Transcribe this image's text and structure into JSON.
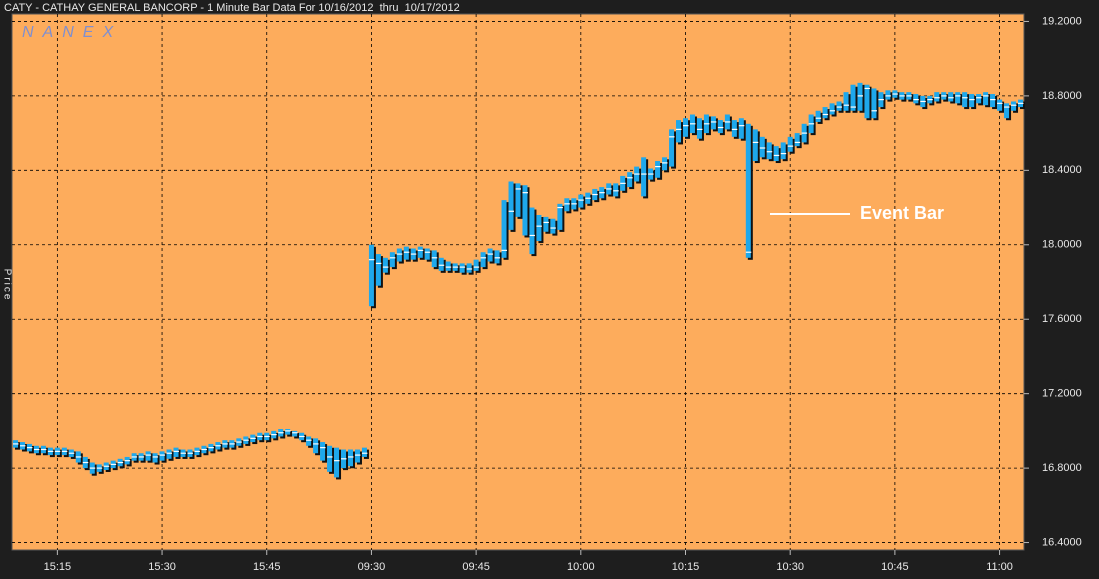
{
  "chart_data": {
    "type": "hlc",
    "title": "CATY - CATHAY GENERAL BANCORP - 1 Minute Bar Data For 10/16/2012  thru  10/17/2012",
    "watermark": "NANEX",
    "y_label": "Price",
    "annotation": "Event Bar",
    "color": "#1ea8ec",
    "background": "#fdac5c",
    "grid": true,
    "ylim": [
      16.36,
      19.24
    ],
    "yticks": [
      {
        "value": 16.4,
        "label": "16.4000"
      },
      {
        "value": 16.8,
        "label": "16.8000"
      },
      {
        "value": 17.2,
        "label": "17.2000"
      },
      {
        "value": 17.6,
        "label": "17.6000"
      },
      {
        "value": 18.0,
        "label": "18.0000"
      },
      {
        "value": 18.4,
        "label": "18.4000"
      },
      {
        "value": 18.8,
        "label": "18.8000"
      },
      {
        "value": 19.2,
        "label": "19.2000"
      }
    ],
    "categories": [
      null,
      null,
      null,
      null,
      null,
      null,
      "15:15",
      null,
      null,
      null,
      null,
      null,
      null,
      null,
      null,
      null,
      null,
      null,
      null,
      null,
      null,
      "15:30",
      null,
      null,
      null,
      null,
      null,
      null,
      null,
      null,
      null,
      null,
      null,
      null,
      null,
      null,
      "15:45",
      null,
      null,
      null,
      null,
      null,
      null,
      null,
      null,
      null,
      null,
      null,
      null,
      null,
      null,
      "09:30",
      null,
      null,
      null,
      null,
      null,
      null,
      null,
      null,
      null,
      null,
      null,
      null,
      null,
      null,
      "09:45",
      null,
      null,
      null,
      null,
      null,
      null,
      null,
      null,
      null,
      null,
      null,
      null,
      null,
      null,
      "10:00",
      null,
      null,
      null,
      null,
      null,
      null,
      null,
      null,
      null,
      null,
      null,
      null,
      null,
      null,
      "10:15",
      null,
      null,
      null,
      null,
      null,
      null,
      null,
      null,
      null,
      null,
      null,
      null,
      null,
      null,
      "10:30",
      null,
      null,
      null,
      null,
      null,
      null,
      null,
      null,
      null,
      null,
      null,
      null,
      null,
      null,
      "10:45",
      null,
      null,
      null,
      null,
      null,
      null,
      null,
      null,
      null,
      null,
      null,
      null,
      null,
      null,
      "11:00",
      null,
      null,
      null
    ],
    "high": [
      16.95,
      16.94,
      16.93,
      16.92,
      16.92,
      16.91,
      16.91,
      16.91,
      16.9,
      16.89,
      16.86,
      16.83,
      16.82,
      16.83,
      16.84,
      16.85,
      16.86,
      16.88,
      16.88,
      16.89,
      16.88,
      16.89,
      16.9,
      16.91,
      16.9,
      16.9,
      16.91,
      16.92,
      16.93,
      16.94,
      16.95,
      16.95,
      16.96,
      16.97,
      16.98,
      16.99,
      16.99,
      17.0,
      17.01,
      17.01,
      17.0,
      16.99,
      16.97,
      16.96,
      16.94,
      16.92,
      16.91,
      16.9,
      16.9,
      16.9,
      16.91,
      18.0,
      17.95,
      17.93,
      17.96,
      17.98,
      17.99,
      17.98,
      17.99,
      17.98,
      17.97,
      17.93,
      17.91,
      17.9,
      17.9,
      17.9,
      17.92,
      17.96,
      17.98,
      17.97,
      18.24,
      18.34,
      18.33,
      18.32,
      18.2,
      18.16,
      18.15,
      18.14,
      18.22,
      18.25,
      18.25,
      18.27,
      18.28,
      18.3,
      18.31,
      18.33,
      18.33,
      18.37,
      18.39,
      18.42,
      18.47,
      18.41,
      18.45,
      18.47,
      18.62,
      18.67,
      18.68,
      18.7,
      18.68,
      18.7,
      18.69,
      18.67,
      18.7,
      18.67,
      18.68,
      18.65,
      18.62,
      18.58,
      18.55,
      18.53,
      18.55,
      18.58,
      18.6,
      18.65,
      18.7,
      18.72,
      18.74,
      18.76,
      18.77,
      18.82,
      18.86,
      18.87,
      18.86,
      18.84,
      18.82,
      18.83,
      18.83,
      18.82,
      18.82,
      18.81,
      18.8,
      18.8,
      18.82,
      18.82,
      18.82,
      18.82,
      18.82,
      18.81,
      18.81,
      18.82,
      18.81,
      18.78,
      18.76,
      18.77,
      18.78
    ],
    "low": [
      16.91,
      16.9,
      16.89,
      16.88,
      16.88,
      16.87,
      16.87,
      16.87,
      16.86,
      16.83,
      16.8,
      16.77,
      16.78,
      16.79,
      16.8,
      16.81,
      16.82,
      16.84,
      16.84,
      16.84,
      16.83,
      16.84,
      16.85,
      16.86,
      16.86,
      16.86,
      16.87,
      16.88,
      16.89,
      16.9,
      16.91,
      16.91,
      16.92,
      16.93,
      16.94,
      16.95,
      16.95,
      16.96,
      16.97,
      16.98,
      16.97,
      16.95,
      16.92,
      16.88,
      16.84,
      16.78,
      16.75,
      16.8,
      16.81,
      16.83,
      16.86,
      17.67,
      17.78,
      17.85,
      17.88,
      17.91,
      17.92,
      17.92,
      17.93,
      17.92,
      17.88,
      17.86,
      17.86,
      17.86,
      17.85,
      17.85,
      17.86,
      17.88,
      17.91,
      17.9,
      17.93,
      18.08,
      18.15,
      18.05,
      17.95,
      18.02,
      18.07,
      18.06,
      18.08,
      18.18,
      18.19,
      18.2,
      18.22,
      18.24,
      18.25,
      18.27,
      18.26,
      18.29,
      18.31,
      18.34,
      18.26,
      18.35,
      18.36,
      18.4,
      18.42,
      18.55,
      18.58,
      18.6,
      18.57,
      18.6,
      18.62,
      18.6,
      18.62,
      18.58,
      18.57,
      17.93,
      18.45,
      18.47,
      18.46,
      18.45,
      18.46,
      18.5,
      18.53,
      18.55,
      18.6,
      18.66,
      18.68,
      18.7,
      18.72,
      18.72,
      18.72,
      18.72,
      18.68,
      18.68,
      18.74,
      18.78,
      18.79,
      18.78,
      18.78,
      18.76,
      18.74,
      18.76,
      18.77,
      18.78,
      18.77,
      18.76,
      18.74,
      18.74,
      18.76,
      18.75,
      18.74,
      18.72,
      18.68,
      18.72,
      18.74
    ],
    "close": [
      16.93,
      16.92,
      16.91,
      16.9,
      16.9,
      16.89,
      16.89,
      16.89,
      16.88,
      16.86,
      16.83,
      16.8,
      16.8,
      16.81,
      16.82,
      16.83,
      16.84,
      16.86,
      16.86,
      16.87,
      16.86,
      16.87,
      16.88,
      16.89,
      16.88,
      16.88,
      16.89,
      16.9,
      16.91,
      16.92,
      16.93,
      16.93,
      16.94,
      16.95,
      16.96,
      16.97,
      16.97,
      16.98,
      16.99,
      17.0,
      16.99,
      16.97,
      16.95,
      16.93,
      16.91,
      16.86,
      16.84,
      16.85,
      16.86,
      16.87,
      16.88,
      17.92,
      17.9,
      17.88,
      17.93,
      17.95,
      17.96,
      17.95,
      17.97,
      17.96,
      17.93,
      17.89,
      17.88,
      17.88,
      17.88,
      17.87,
      17.88,
      17.93,
      17.95,
      17.93,
      17.97,
      18.18,
      18.3,
      18.28,
      18.05,
      18.1,
      18.12,
      18.09,
      18.2,
      18.22,
      18.22,
      18.24,
      18.25,
      18.27,
      18.28,
      18.3,
      18.29,
      18.33,
      18.36,
      18.38,
      18.38,
      18.38,
      18.42,
      18.44,
      18.58,
      18.62,
      18.64,
      18.65,
      18.62,
      18.65,
      18.66,
      18.63,
      18.66,
      18.62,
      18.64,
      17.96,
      18.55,
      18.52,
      18.5,
      18.48,
      18.49,
      18.53,
      18.55,
      18.6,
      18.65,
      18.68,
      18.7,
      18.72,
      18.74,
      18.75,
      18.74,
      18.8,
      18.84,
      18.72,
      18.78,
      18.8,
      18.81,
      18.8,
      18.8,
      18.78,
      18.77,
      18.78,
      18.79,
      18.8,
      18.79,
      18.8,
      18.79,
      18.78,
      18.79,
      18.8,
      18.78,
      18.76,
      18.74,
      18.75,
      18.76
    ]
  }
}
